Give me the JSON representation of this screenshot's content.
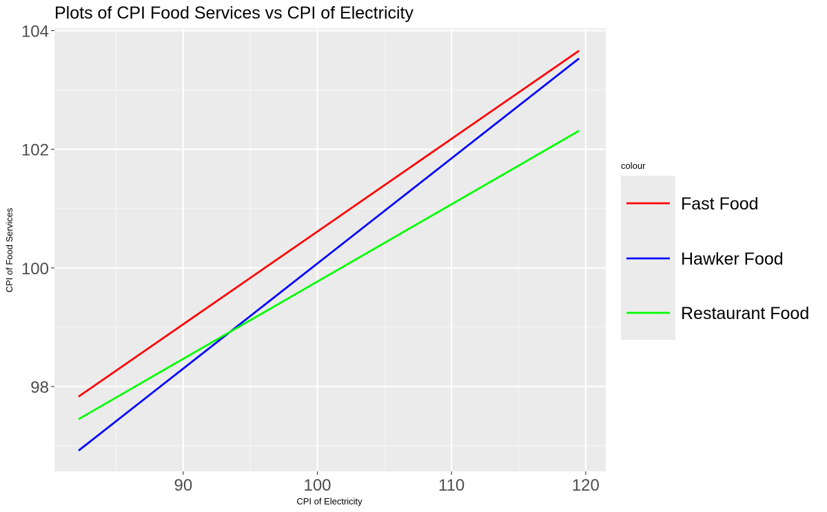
{
  "chart_data": {
    "type": "line",
    "title": "Plots of CPI Food Services vs CPI of Electricity",
    "xlabel": "CPI of Electricity",
    "ylabel": "CPI of Food Services",
    "xlim": [
      80.4,
      121.5
    ],
    "ylim": [
      96.57,
      104.04
    ],
    "x_ticks": [
      90,
      100,
      110,
      120
    ],
    "x_tick_labels": [
      "90",
      "100",
      "110",
      "120"
    ],
    "y_ticks": [
      98,
      100,
      102,
      104
    ],
    "y_tick_labels": [
      "98",
      "100",
      "102",
      "104"
    ],
    "grid": true,
    "legend": {
      "title": "colour",
      "position": "right",
      "entries": [
        "Fast Food",
        "Hawker Food",
        "Restaurant Food"
      ]
    },
    "series": [
      {
        "name": "Fast Food",
        "color": "#ff0000",
        "x": [
          82.2,
          119.5
        ],
        "y": [
          97.83,
          103.66
        ]
      },
      {
        "name": "Hawker Food",
        "color": "#0000ff",
        "x": [
          82.2,
          119.5
        ],
        "y": [
          96.92,
          103.53
        ]
      },
      {
        "name": "Restaurant Food",
        "color": "#00ff00",
        "x": [
          82.2,
          119.5
        ],
        "y": [
          97.45,
          102.31
        ]
      }
    ]
  },
  "colors": {
    "panel_background": "#ebebeb",
    "grid_major": "#ffffff",
    "grid_minor": "#f5f5f5",
    "tick_text": "#4d4d4d"
  }
}
